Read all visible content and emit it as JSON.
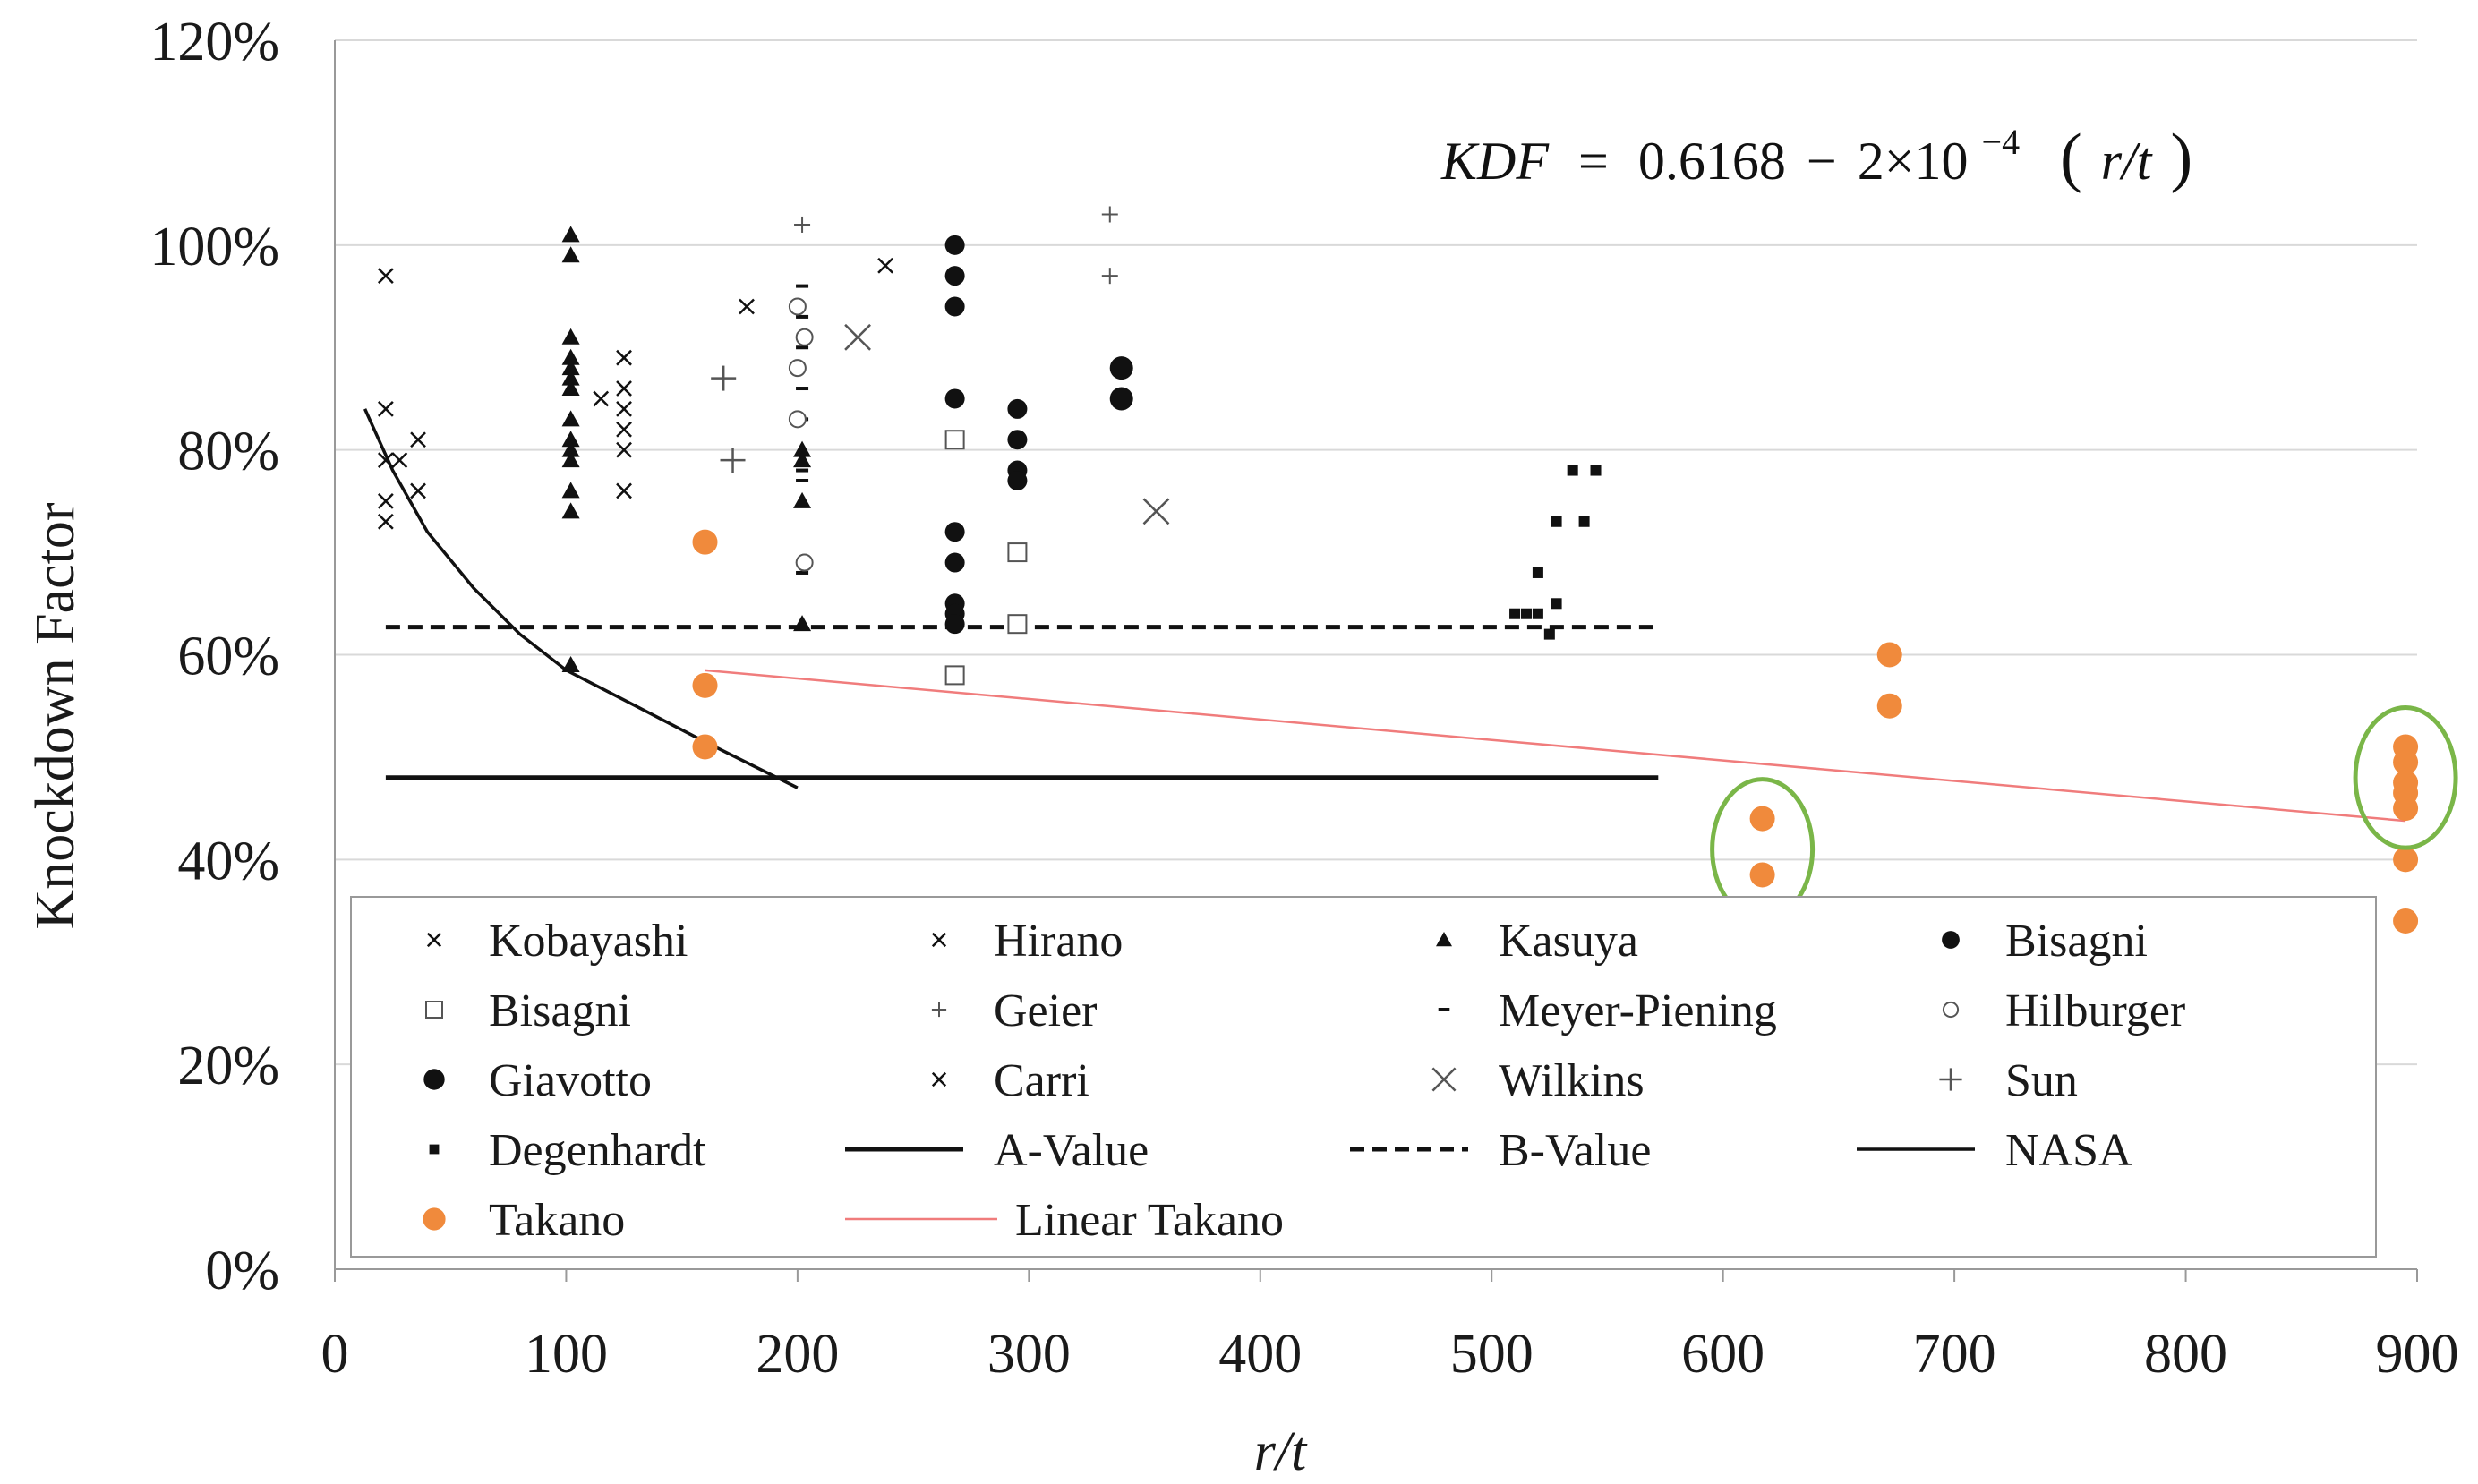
{
  "chart_data": {
    "type": "scatter",
    "title": "",
    "xlabel": "r/t",
    "ylabel": "Knockdown Factor",
    "xlim": [
      0,
      900
    ],
    "ylim": [
      0,
      1.2
    ],
    "x_ticks": [
      "0",
      "100",
      "200",
      "300",
      "400",
      "500",
      "600",
      "700",
      "800",
      "900"
    ],
    "y_ticks": [
      "0%",
      "20%",
      "40%",
      "60%",
      "80%",
      "100%",
      "120%"
    ],
    "grid": "horizontal",
    "annotation": {
      "lhs": "KDF",
      "eq": "=",
      "constant": "0.6168",
      "minus": "−",
      "coef": "2×10",
      "exponent": "−4",
      "paren_open": "(",
      "rt": "r/t",
      "paren_close": ")"
    },
    "colors": {
      "black": "#111111",
      "takano": "#f08a3c",
      "linear_takano": "#f07c7c",
      "highlight_circle": "#7ab648",
      "grid": "#d9d9d9",
      "frame": "#999999"
    },
    "highlighted_groups": [
      {
        "x": 617,
        "y_range": [
          0.38,
          0.44
        ]
      },
      {
        "x": 895,
        "y_range": [
          0.45,
          0.51
        ]
      }
    ],
    "series": [
      {
        "name": "Kobayashi",
        "marker": "x-small",
        "points": [
          [
            22,
            0.97
          ],
          [
            22,
            0.84
          ],
          [
            22,
            0.79
          ],
          [
            22,
            0.75
          ],
          [
            22,
            0.73
          ],
          [
            28,
            0.79
          ],
          [
            36,
            0.81
          ],
          [
            36,
            0.76
          ]
        ]
      },
      {
        "name": "Hirano",
        "marker": "x-small",
        "points": [
          [
            125,
            0.89
          ],
          [
            125,
            0.86
          ],
          [
            125,
            0.84
          ],
          [
            125,
            0.82
          ],
          [
            125,
            0.8
          ],
          [
            125,
            0.76
          ],
          [
            115,
            0.85
          ]
        ]
      },
      {
        "name": "Kasuya",
        "marker": "triangle",
        "points": [
          [
            102,
            1.01
          ],
          [
            102,
            0.99
          ],
          [
            102,
            0.91
          ],
          [
            102,
            0.89
          ],
          [
            102,
            0.88
          ],
          [
            102,
            0.87
          ],
          [
            102,
            0.86
          ],
          [
            102,
            0.83
          ],
          [
            102,
            0.81
          ],
          [
            102,
            0.8
          ],
          [
            102,
            0.79
          ],
          [
            102,
            0.76
          ],
          [
            102,
            0.74
          ],
          [
            102,
            0.59
          ],
          [
            202,
            0.8
          ],
          [
            202,
            0.79
          ],
          [
            202,
            0.75
          ],
          [
            202,
            0.63
          ]
        ]
      },
      {
        "name": "Bisagni",
        "marker": "dot-small",
        "points": [
          [
            268,
            1.0
          ],
          [
            268,
            0.97
          ],
          [
            268,
            0.94
          ],
          [
            268,
            0.85
          ],
          [
            268,
            0.72
          ],
          [
            268,
            0.69
          ],
          [
            268,
            0.65
          ],
          [
            268,
            0.64
          ],
          [
            268,
            0.63
          ],
          [
            295,
            0.84
          ],
          [
            295,
            0.81
          ],
          [
            295,
            0.78
          ],
          [
            295,
            0.77
          ]
        ]
      },
      {
        "name": "Bisagni",
        "marker": "square-open",
        "points": [
          [
            268,
            0.81
          ],
          [
            268,
            0.58
          ],
          [
            295,
            0.7
          ],
          [
            295,
            0.63
          ]
        ]
      },
      {
        "name": "Geier",
        "marker": "plus-small",
        "points": [
          [
            335,
            1.03
          ],
          [
            335,
            0.97
          ],
          [
            202,
            1.02
          ]
        ]
      },
      {
        "name": "Meyer-Piening",
        "marker": "dash",
        "points": [
          [
            202,
            0.96
          ],
          [
            202,
            0.93
          ],
          [
            202,
            0.9
          ],
          [
            202,
            0.86
          ],
          [
            202,
            0.83
          ],
          [
            202,
            0.78
          ],
          [
            202,
            0.77
          ],
          [
            202,
            0.69
          ],
          [
            202,
            0.68
          ]
        ]
      },
      {
        "name": "Hilburger",
        "marker": "circle-open",
        "points": [
          [
            200,
            0.94
          ],
          [
            200,
            0.88
          ],
          [
            200,
            0.83
          ],
          [
            203,
            0.91
          ],
          [
            203,
            0.69
          ]
        ]
      },
      {
        "name": "Giavotto",
        "marker": "dot-large",
        "points": [
          [
            340,
            0.88
          ],
          [
            340,
            0.85
          ]
        ]
      },
      {
        "name": "Carri",
        "marker": "x-small",
        "points": [
          [
            238,
            0.98
          ],
          [
            178,
            0.94
          ]
        ]
      },
      {
        "name": "Wilkins",
        "marker": "x-large",
        "points": [
          [
            226,
            0.91
          ],
          [
            355,
            0.74
          ]
        ]
      },
      {
        "name": "Sun",
        "marker": "plus-large",
        "points": [
          [
            168,
            0.87
          ],
          [
            172,
            0.79
          ]
        ]
      },
      {
        "name": "Degenhardt",
        "marker": "square-small",
        "points": [
          [
            510,
            0.64
          ],
          [
            515,
            0.64
          ],
          [
            520,
            0.68
          ],
          [
            520,
            0.64
          ],
          [
            525,
            0.62
          ],
          [
            528,
            0.65
          ],
          [
            528,
            0.73
          ],
          [
            535,
            0.78
          ],
          [
            540,
            0.73
          ],
          [
            545,
            0.78
          ]
        ]
      },
      {
        "name": "A-Value",
        "marker": "line-thick",
        "line": [
          [
            22,
            0.48
          ],
          [
            572,
            0.48
          ]
        ]
      },
      {
        "name": "B-Value",
        "marker": "line-dashed",
        "line": [
          [
            22,
            0.627
          ],
          [
            572,
            0.627
          ]
        ]
      },
      {
        "name": "NASA",
        "marker": "line-thin",
        "line": [
          [
            13,
            0.84
          ],
          [
            25,
            0.78
          ],
          [
            40,
            0.72
          ],
          [
            60,
            0.665
          ],
          [
            80,
            0.62
          ],
          [
            100,
            0.585
          ],
          [
            130,
            0.55
          ],
          [
            160,
            0.515
          ],
          [
            200,
            0.47
          ]
        ]
      },
      {
        "name": "Takano",
        "marker": "dot-orange",
        "points": [
          [
            160,
            0.71
          ],
          [
            160,
            0.57
          ],
          [
            160,
            0.51
          ],
          [
            617,
            0.44
          ],
          [
            617,
            0.385
          ],
          [
            672,
            0.6
          ],
          [
            672,
            0.55
          ],
          [
            895,
            0.51
          ],
          [
            895,
            0.495
          ],
          [
            895,
            0.475
          ],
          [
            895,
            0.465
          ],
          [
            895,
            0.45
          ],
          [
            895,
            0.4
          ],
          [
            895,
            0.34
          ]
        ]
      },
      {
        "name": "Linear Takano",
        "marker": "line-red",
        "line": [
          [
            160,
            0.5848
          ],
          [
            895,
            0.4378
          ]
        ]
      }
    ]
  }
}
